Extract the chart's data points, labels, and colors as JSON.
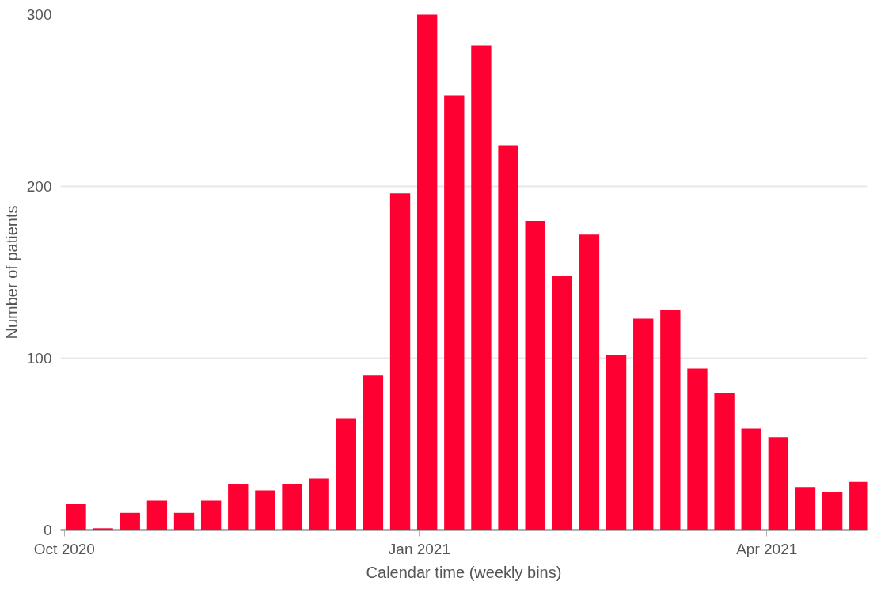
{
  "chart_data": {
    "type": "bar",
    "xlabel": "Calendar time (weekly bins)",
    "ylabel": "Number of patients",
    "x": [
      "2020-10-04",
      "2020-10-11",
      "2020-10-18",
      "2020-10-25",
      "2020-11-01",
      "2020-11-08",
      "2020-11-15",
      "2020-11-22",
      "2020-11-29",
      "2020-12-06",
      "2020-12-13",
      "2020-12-20",
      "2020-12-27",
      "2021-01-03",
      "2021-01-10",
      "2021-01-17",
      "2021-01-24",
      "2021-01-31",
      "2021-02-07",
      "2021-02-14",
      "2021-02-21",
      "2021-02-28",
      "2021-03-07",
      "2021-03-14",
      "2021-03-21",
      "2021-03-28",
      "2021-04-04",
      "2021-04-11",
      "2021-04-18",
      "2021-04-25"
    ],
    "values": [
      15,
      1,
      10,
      17,
      10,
      17,
      27,
      23,
      27,
      30,
      65,
      90,
      196,
      300,
      253,
      282,
      224,
      180,
      148,
      172,
      102,
      123,
      128,
      94,
      80,
      59,
      54,
      25,
      22,
      28
    ],
    "color": "#ff0033",
    "xlim": [
      "2020-09-30",
      "2021-04-27"
    ],
    "xticks": [
      {
        "value": "2020-10-01",
        "label": "Oct 2020"
      },
      {
        "value": "2021-01-01",
        "label": "Jan 2021"
      },
      {
        "value": "2021-04-01",
        "label": "Apr 2021"
      }
    ],
    "ylim": [
      0,
      300
    ],
    "yticks": [
      0,
      100,
      200,
      300
    ],
    "grid": "y"
  }
}
